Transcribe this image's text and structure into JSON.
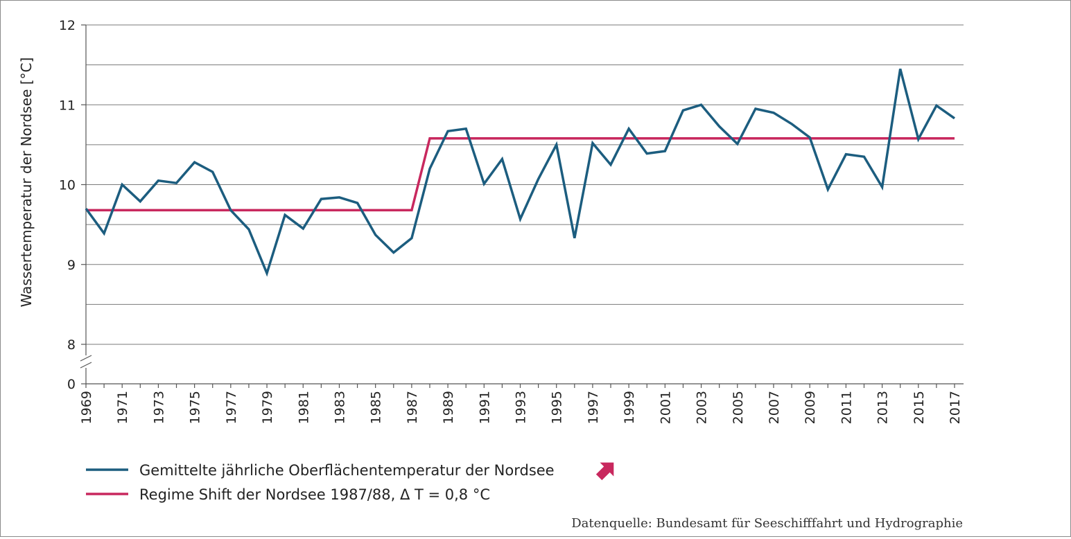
{
  "chart_data": {
    "type": "line",
    "ylabel": "Wassertemperatur der Nordsee  [°C]",
    "xlabel": "",
    "y_ticks": [
      "8",
      "9",
      "10",
      "11",
      "12"
    ],
    "y_axis_bottom_tick": "0",
    "ylim": [
      8,
      12
    ],
    "x_range": [
      1969,
      2017
    ],
    "x_ticks": [
      "1969",
      "1971",
      "1973",
      "1975",
      "1977",
      "1979",
      "1981",
      "1983",
      "1985",
      "1987",
      "1989",
      "1991",
      "1993",
      "1995",
      "1997",
      "1999",
      "2001",
      "2003",
      "2005",
      "2007",
      "2009",
      "2011",
      "2013",
      "2015",
      "2017"
    ],
    "grid": "horizontal",
    "series": [
      {
        "name": "Gemittelte jährliche Oberflächentemperatur der Nordsee",
        "color": "#1c5d7f",
        "x": [
          1969,
          1970,
          1971,
          1972,
          1973,
          1974,
          1975,
          1976,
          1977,
          1978,
          1979,
          1980,
          1981,
          1982,
          1983,
          1984,
          1985,
          1986,
          1987,
          1988,
          1989,
          1990,
          1991,
          1992,
          1993,
          1994,
          1995,
          1996,
          1997,
          1998,
          1999,
          2000,
          2001,
          2002,
          2003,
          2004,
          2005,
          2006,
          2007,
          2008,
          2009,
          2010,
          2011,
          2012,
          2013,
          2014,
          2015,
          2016,
          2017
        ],
        "y": [
          9.7,
          9.39,
          10.0,
          9.79,
          10.05,
          10.02,
          10.28,
          10.16,
          9.68,
          9.44,
          8.89,
          9.62,
          9.45,
          9.82,
          9.84,
          9.77,
          9.37,
          9.15,
          9.33,
          10.2,
          10.67,
          10.7,
          10.01,
          10.32,
          9.57,
          10.07,
          10.5,
          9.33,
          10.52,
          10.25,
          10.7,
          10.39,
          10.42,
          10.93,
          11.0,
          10.73,
          10.51,
          10.95,
          10.9,
          10.76,
          10.59,
          9.94,
          10.38,
          10.35,
          9.97,
          11.45,
          10.57,
          10.99,
          10.83
        ]
      },
      {
        "name": "Regime Shift der Nordsee 1987/88, Δ T = 0,8 °C",
        "color": "#c8285e",
        "x": [
          1969,
          1987,
          1988,
          2017
        ],
        "y": [
          9.68,
          9.68,
          10.58,
          10.58
        ]
      }
    ],
    "legend_placement": "bottom-left",
    "trend_arrow_color": "#c8285e",
    "source": "Datenquelle: Bundesamt für Seeschifffahrt und Hydrographie"
  }
}
